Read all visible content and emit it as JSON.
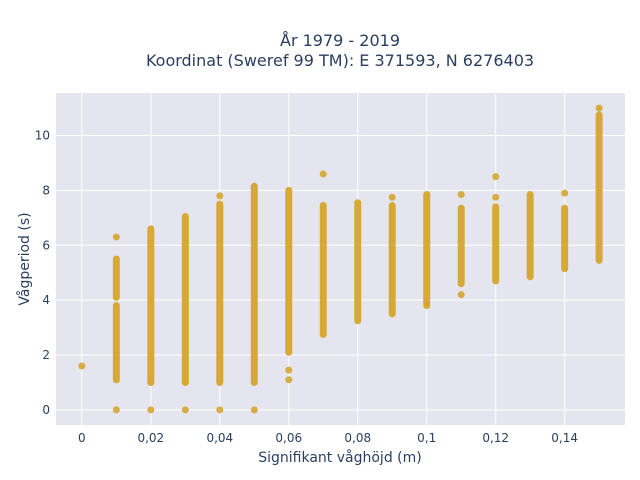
{
  "chart_data": {
    "type": "scatter",
    "title_line1": "År 1979 - 2019",
    "title_line2": "Koordinat (Sweref 99 TM): E 371593, N 6276403",
    "xlabel": "Signifikant våghöjd (m)",
    "ylabel": "Vågperiod (s)",
    "xlim": [
      -0.0075,
      0.1575
    ],
    "ylim": [
      -0.55,
      11.55
    ],
    "x_ticks": [
      0,
      0.02,
      0.04,
      0.06,
      0.08,
      0.1,
      0.12,
      0.14
    ],
    "x_tick_labels": [
      "0",
      "0,02",
      "0,04",
      "0,06",
      "0,08",
      "0,1",
      "0,12",
      "0,14"
    ],
    "y_ticks": [
      0,
      2,
      4,
      6,
      8,
      10
    ],
    "y_tick_labels": [
      "0",
      "2",
      "4",
      "6",
      "8",
      "10"
    ],
    "grid": true,
    "marker_color": "#d4a222",
    "plot_bg": "#e5e5ef",
    "columns": [
      {
        "x": 0,
        "ranges": [],
        "points": [
          1.6
        ]
      },
      {
        "x": 0.01,
        "ranges": [
          [
            1.1,
            3.8
          ],
          [
            4.1,
            5.5
          ]
        ],
        "points": [
          0,
          6.3
        ]
      },
      {
        "x": 0.02,
        "ranges": [
          [
            1.0,
            6.6
          ]
        ],
        "points": [
          0
        ]
      },
      {
        "x": 0.03,
        "ranges": [
          [
            1.0,
            7.05
          ]
        ],
        "points": [
          0
        ]
      },
      {
        "x": 0.04,
        "ranges": [
          [
            1.0,
            7.5
          ]
        ],
        "points": [
          0,
          7.8
        ]
      },
      {
        "x": 0.05,
        "ranges": [
          [
            1.0,
            8.15
          ]
        ],
        "points": [
          0
        ]
      },
      {
        "x": 0.06,
        "ranges": [
          [
            2.1,
            8.0
          ]
        ],
        "points": [
          1.1,
          1.45
        ]
      },
      {
        "x": 0.07,
        "ranges": [
          [
            2.75,
            7.45
          ]
        ],
        "points": [
          8.6
        ]
      },
      {
        "x": 0.08,
        "ranges": [
          [
            3.25,
            7.55
          ]
        ],
        "points": []
      },
      {
        "x": 0.09,
        "ranges": [
          [
            3.5,
            7.45
          ]
        ],
        "points": [
          7.75
        ]
      },
      {
        "x": 0.1,
        "ranges": [
          [
            3.9,
            7.85
          ]
        ],
        "points": [
          3.8
        ]
      },
      {
        "x": 0.11,
        "ranges": [
          [
            4.6,
            7.35
          ]
        ],
        "points": [
          4.2,
          7.85
        ]
      },
      {
        "x": 0.12,
        "ranges": [
          [
            4.7,
            7.4
          ]
        ],
        "points": [
          7.75,
          8.5
        ]
      },
      {
        "x": 0.13,
        "ranges": [
          [
            4.85,
            7.85
          ]
        ],
        "points": []
      },
      {
        "x": 0.14,
        "ranges": [
          [
            5.15,
            7.35
          ]
        ],
        "points": [
          7.9
        ]
      },
      {
        "x": 0.15,
        "ranges": [
          [
            5.45,
            10.75
          ]
        ],
        "points": [
          11.0
        ]
      }
    ]
  }
}
